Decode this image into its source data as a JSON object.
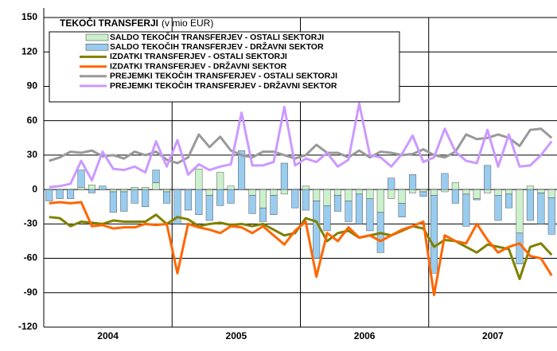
{
  "chart_data": {
    "type": "bar-line",
    "title": "TEKOČI TRANSFERJI",
    "subtitle": "(v mio EUR)",
    "categories": [
      null,
      null,
      null,
      null,
      null,
      null,
      null,
      null,
      null,
      null,
      null,
      null,
      null,
      null,
      null,
      null,
      null,
      null,
      null,
      null,
      null,
      null,
      null,
      null,
      null,
      null,
      null,
      null,
      null,
      null,
      null,
      null,
      null,
      null,
      null,
      null,
      null,
      null,
      null,
      null,
      null,
      null,
      null,
      null,
      null,
      null,
      null,
      null
    ],
    "years": [
      "2004",
      "2005",
      "2006",
      "2007"
    ],
    "ylim": [
      -120,
      150
    ],
    "yticks": [
      150,
      120,
      90,
      60,
      30,
      0,
      -30,
      -60,
      -90,
      -120
    ],
    "grid": true,
    "series": [
      {
        "name": "SALDO TEKOČIH TRANSFERJEV - OSTALI SEKTORJI",
        "kind": "bar",
        "color": "#ccf0cc",
        "values": [
          0,
          0,
          0,
          2,
          4,
          0,
          -2,
          -2,
          2,
          2,
          6,
          -2,
          0,
          0,
          18,
          -5,
          15,
          3,
          0,
          -5,
          -16,
          -5,
          -4,
          0,
          3,
          -10,
          -14,
          -5,
          -10,
          -4,
          -8,
          -20,
          -8,
          -12,
          -3,
          -2,
          -5,
          -2,
          6,
          -4,
          -8,
          -3,
          -5,
          -4,
          -38,
          3,
          -3,
          -7
        ]
      },
      {
        "name": "SALDO TEKOČIH TRANSFERJEV - DRŽAVNI SEKTOR",
        "kind": "bar",
        "color": "#99ccee",
        "values": [
          -10,
          -8,
          -8,
          15,
          -3,
          3,
          -18,
          -17,
          -12,
          -15,
          11,
          -10,
          -30,
          -18,
          -22,
          -22,
          -14,
          -12,
          34,
          -16,
          -12,
          -17,
          23,
          -16,
          -18,
          -50,
          -22,
          -14,
          -18,
          -26,
          -28,
          -35,
          10,
          -12,
          13,
          -4,
          -68,
          14,
          -12,
          -28,
          -1,
          21,
          -22,
          -12,
          -27,
          -27,
          -27,
          -32
        ]
      },
      {
        "name": "IZDATKI TRANSFERJEV - OSTALI SEKTORJI",
        "kind": "line",
        "color": "#808000",
        "values": [
          -24,
          -25,
          -32,
          -28,
          -29,
          -30,
          -27,
          -28,
          -28,
          -28,
          -22,
          -30,
          -24,
          -26,
          -32,
          -30,
          -29,
          -31,
          -30,
          -32,
          -30,
          -35,
          -40,
          -38,
          -25,
          -28,
          -45,
          -38,
          -36,
          -42,
          -40,
          -38,
          -40,
          -36,
          -32,
          -34,
          -50,
          -44,
          -45,
          -50,
          -55,
          -48,
          -50,
          -52,
          -78,
          -50,
          -47,
          -57
        ]
      },
      {
        "name": "IZDATKI TRANSFERJEV - DRŽAVNI SEKTOR",
        "kind": "line",
        "color": "#ff6600",
        "values": [
          -12,
          -11,
          -12,
          -11,
          -32,
          -31,
          -34,
          -33,
          -33,
          -30,
          -31,
          -30,
          -73,
          -30,
          -33,
          -35,
          -38,
          -32,
          -33,
          -38,
          -32,
          -40,
          -48,
          -36,
          -28,
          -76,
          -38,
          -45,
          -33,
          -42,
          -40,
          -45,
          -40,
          -35,
          -32,
          -28,
          -92,
          -40,
          -45,
          -47,
          -30,
          -44,
          -55,
          -50,
          -47,
          -58,
          -60,
          -75
        ]
      },
      {
        "name": "PREJEMKI TEKOČIH TRANSFERJEV - OSTALI SEKTORJI",
        "kind": "line",
        "color": "#999999",
        "values": [
          25,
          28,
          33,
          32,
          34,
          29,
          30,
          27,
          33,
          30,
          33,
          26,
          23,
          28,
          48,
          37,
          46,
          34,
          30,
          28,
          33,
          33,
          30,
          27,
          30,
          39,
          32,
          32,
          28,
          34,
          28,
          33,
          32,
          30,
          31,
          35,
          30,
          28,
          33,
          48,
          44,
          45,
          48,
          45,
          38,
          52,
          53,
          45
        ]
      },
      {
        "name": "PREJEMKI TEKOČIH TRANSFERJEV - DRŽAVNI SEKTOR",
        "kind": "line",
        "color": "#cc99ff",
        "values": [
          2,
          3,
          5,
          25,
          8,
          33,
          18,
          17,
          20,
          15,
          42,
          20,
          43,
          13,
          22,
          17,
          20,
          22,
          67,
          21,
          21,
          24,
          72,
          21,
          27,
          24,
          32,
          20,
          26,
          75,
          30,
          28,
          20,
          31,
          47,
          24,
          28,
          53,
          33,
          25,
          23,
          52,
          20,
          48,
          20,
          21,
          30,
          42
        ]
      }
    ]
  }
}
